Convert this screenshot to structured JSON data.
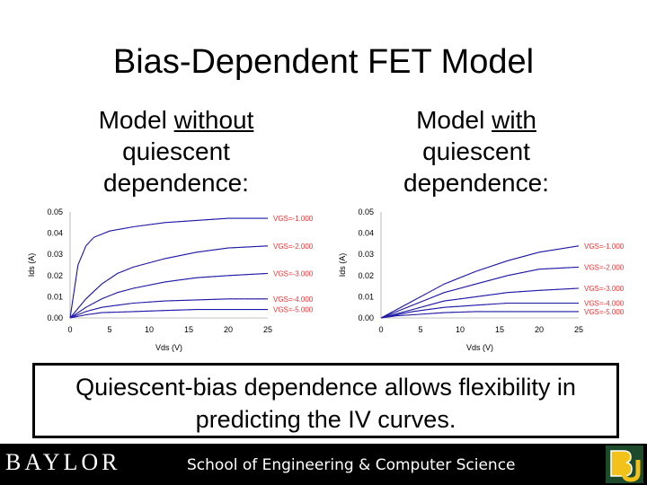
{
  "slide": {
    "title": "Bias-Dependent FET Model",
    "left_heading": {
      "pre": "Model ",
      "underlined": "without",
      "rest": "quiescent dependence:"
    },
    "right_heading": {
      "pre": "Model ",
      "underlined": "with",
      "rest": "quiescent dependence:"
    },
    "callout": "Quiescent-bias dependence allows flexibility in predicting the IV curves.",
    "footer": {
      "school": "School of Engineering & Computer Science"
    }
  },
  "colors": {
    "measured": "#ee3333",
    "model": "#1a1aaa",
    "footer_bg": "#000000",
    "logo_green": "#1d4a2a",
    "logo_gold": "#f2c21b"
  },
  "chart_data": [
    {
      "type": "line",
      "title": "",
      "xlabel": "Vds (V)",
      "ylabel": "Ids (A)",
      "xlim": [
        0,
        25
      ],
      "ylim": [
        0,
        0.05
      ],
      "xticks": [
        "0",
        "5",
        "10",
        "15",
        "20",
        "25"
      ],
      "yticks": [
        "0.00",
        "0.01",
        "0.02",
        "0.03",
        "0.04",
        "0.05"
      ],
      "series": [
        {
          "name": "VGS=-1.000",
          "x": [
            0,
            1,
            2,
            3,
            5,
            8,
            12,
            16,
            20,
            25
          ],
          "y": [
            0,
            0.025,
            0.034,
            0.038,
            0.041,
            0.043,
            0.045,
            0.046,
            0.047,
            0.047
          ]
        },
        {
          "name": "VGS=-2.000",
          "x": [
            0,
            2,
            4,
            6,
            8,
            12,
            16,
            20,
            25
          ],
          "y": [
            0,
            0.009,
            0.016,
            0.021,
            0.024,
            0.028,
            0.031,
            0.033,
            0.034
          ]
        },
        {
          "name": "VGS=-3.000",
          "x": [
            0,
            2,
            4,
            6,
            8,
            12,
            16,
            20,
            25
          ],
          "y": [
            0,
            0.005,
            0.009,
            0.012,
            0.014,
            0.017,
            0.019,
            0.02,
            0.021
          ]
        },
        {
          "name": "VGS=-4.000",
          "x": [
            0,
            2,
            4,
            6,
            8,
            12,
            16,
            20,
            25
          ],
          "y": [
            0,
            0.003,
            0.005,
            0.006,
            0.007,
            0.008,
            0.0085,
            0.009,
            0.009
          ]
        },
        {
          "name": "VGS=-5.000",
          "x": [
            0,
            2,
            4,
            8,
            12,
            16,
            20,
            25
          ],
          "y": [
            0,
            0.0015,
            0.0025,
            0.003,
            0.0035,
            0.004,
            0.004,
            0.004
          ]
        }
      ]
    },
    {
      "type": "line",
      "title": "",
      "xlabel": "Vds (V)",
      "ylabel": "Ids (A)",
      "xlim": [
        0,
        25
      ],
      "ylim": [
        0,
        0.05
      ],
      "xticks": [
        "0",
        "5",
        "10",
        "15",
        "20",
        "25"
      ],
      "yticks": [
        "0.00",
        "0.01",
        "0.02",
        "0.03",
        "0.04",
        "0.05"
      ],
      "series": [
        {
          "name": "VGS=-1.000",
          "x": [
            0,
            2,
            4,
            6,
            8,
            12,
            16,
            20,
            25
          ],
          "y": [
            0,
            0.004,
            0.008,
            0.012,
            0.016,
            0.022,
            0.027,
            0.031,
            0.034
          ]
        },
        {
          "name": "VGS=-2.000",
          "x": [
            0,
            2,
            4,
            6,
            8,
            12,
            16,
            20,
            25
          ],
          "y": [
            0,
            0.003,
            0.006,
            0.009,
            0.012,
            0.016,
            0.02,
            0.023,
            0.024
          ]
        },
        {
          "name": "VGS=-3.000",
          "x": [
            0,
            2,
            4,
            6,
            8,
            12,
            16,
            20,
            25
          ],
          "y": [
            0,
            0.002,
            0.004,
            0.006,
            0.008,
            0.01,
            0.012,
            0.013,
            0.014
          ]
        },
        {
          "name": "VGS=-4.000",
          "x": [
            0,
            2,
            4,
            8,
            12,
            16,
            20,
            25
          ],
          "y": [
            0,
            0.0015,
            0.003,
            0.005,
            0.006,
            0.007,
            0.007,
            0.007
          ]
        },
        {
          "name": "VGS=-5.000",
          "x": [
            0,
            2,
            4,
            8,
            12,
            16,
            20,
            25
          ],
          "y": [
            0,
            0.001,
            0.0015,
            0.0025,
            0.003,
            0.003,
            0.003,
            0.003
          ]
        }
      ]
    }
  ]
}
